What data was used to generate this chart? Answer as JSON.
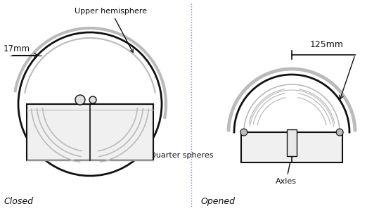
{
  "bg_color": "#ffffff",
  "line_color": "#111111",
  "gray_color": "#777777",
  "light_gray": "#bbbbbb",
  "dark_gray": "#555555",
  "divider_color": "#8888cc",
  "left_label": "Closed",
  "right_label": "Opened",
  "annotation_upper": "Upper hemisphere",
  "annotation_quarter": "Quarter spheres",
  "annotation_axles": "Axles",
  "dim_left": "17mm",
  "dim_right": "125mm",
  "fig_width": 5.49,
  "fig_height": 3.0,
  "dpi": 100
}
